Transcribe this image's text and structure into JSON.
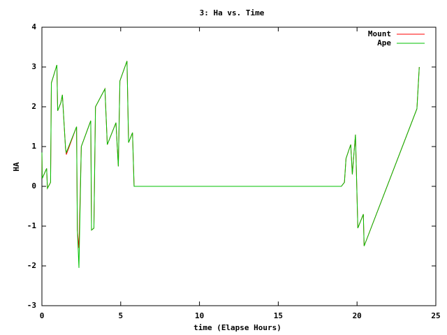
{
  "chart_data": {
    "type": "line",
    "title": "3: Ha vs. Time",
    "xlabel": "time (Elapse Hours)",
    "ylabel": "HA",
    "x": [
      0,
      0.02,
      0.3,
      0.35,
      0.55,
      0.6,
      0.95,
      1.0,
      1.2,
      1.3,
      1.5,
      1.55,
      2.2,
      2.25,
      2.35,
      2.5,
      3.1,
      3.15,
      3.3,
      3.4,
      4.0,
      4.15,
      4.7,
      4.85,
      4.95,
      5.4,
      5.5,
      5.75,
      5.85,
      19.0,
      19.2,
      19.3,
      19.6,
      19.7,
      19.9,
      20.05,
      20.4,
      20.45,
      23.8,
      23.95
    ],
    "series": [
      {
        "name": "Mount",
        "color": "#ff0000",
        "values": [
          0.85,
          0.2,
          0.45,
          -0.05,
          0.1,
          2.6,
          3.05,
          1.9,
          2.1,
          2.3,
          0.95,
          0.8,
          1.5,
          -1.1,
          -1.55,
          1.0,
          1.65,
          -1.1,
          -1.05,
          2.0,
          2.45,
          1.05,
          1.6,
          0.5,
          2.65,
          3.15,
          1.1,
          1.35,
          0.0,
          0.0,
          0.1,
          0.7,
          1.05,
          0.3,
          1.3,
          -1.05,
          -0.7,
          -1.5,
          1.95,
          3.0
        ]
      },
      {
        "name": "Ape",
        "color": "#00c000",
        "values": [
          0.85,
          0.2,
          0.45,
          -0.05,
          0.1,
          2.6,
          3.05,
          1.9,
          2.1,
          2.3,
          0.95,
          0.85,
          1.5,
          -1.1,
          -2.05,
          1.0,
          1.65,
          -1.1,
          -1.05,
          2.0,
          2.45,
          1.05,
          1.6,
          0.5,
          2.65,
          3.15,
          1.1,
          1.35,
          0.0,
          0.0,
          0.1,
          0.7,
          1.05,
          0.3,
          1.3,
          -1.05,
          -0.7,
          -1.5,
          1.95,
          3.0
        ]
      }
    ],
    "xlim": [
      0,
      25
    ],
    "ylim": [
      -3,
      4
    ],
    "xticks": [
      0,
      5,
      10,
      15,
      20,
      25
    ],
    "yticks": [
      -3,
      -2,
      -1,
      0,
      1,
      2,
      3,
      4
    ],
    "legend": "upper right"
  }
}
